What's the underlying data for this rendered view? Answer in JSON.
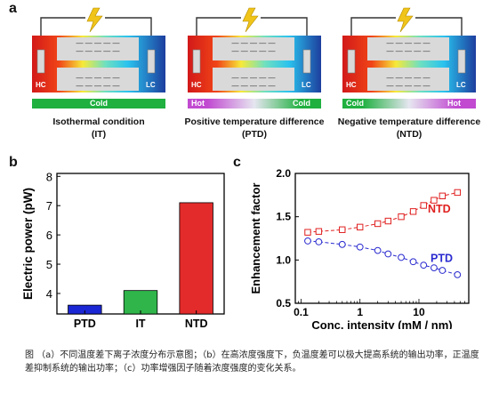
{
  "panels": {
    "a": {
      "letter": "a",
      "devices": [
        {
          "hot_label": "HC",
          "cold_label": "LC",
          "strip": [
            {
              "text": "Cold",
              "color": "#1fb040",
              "align": "center"
            }
          ],
          "condition": [
            "Isothermal condition",
            "(IT)"
          ]
        },
        {
          "hot_label": "HC",
          "cold_label": "LC",
          "strip": [
            {
              "text": "Hot",
              "color": "#c14ad1",
              "align": "left"
            },
            {
              "text": "Cold",
              "color": "#1fb040",
              "align": "right"
            }
          ],
          "condition": [
            "Positive temperature difference",
            "(PTD)"
          ]
        },
        {
          "hot_label": "HC",
          "cold_label": "LC",
          "strip": [
            {
              "text": "Cold",
              "color": "#1fb040",
              "align": "left"
            },
            {
              "text": "Hot",
              "color": "#c14ad1",
              "align": "right"
            }
          ],
          "condition": [
            "Negative temperature difference",
            "(NTD)"
          ]
        }
      ],
      "charge_sign": "— — — — —",
      "colors": {
        "hot": "#d21919",
        "cold": "#1d3e9e",
        "electrode": "#d9d9d9",
        "wire": "#333333",
        "bolt": "#f0c419"
      }
    },
    "b": {
      "letter": "b"
    },
    "c": {
      "letter": "c"
    }
  },
  "chart_data": [
    {
      "type": "bar",
      "panel": "b",
      "categories": [
        "PTD",
        "IT",
        "NTD"
      ],
      "values": [
        3.6,
        4.1,
        7.1
      ],
      "colors": [
        "#1b26d4",
        "#2fb54a",
        "#e32b2b"
      ],
      "ylabel": "Electric power (pW)",
      "yticks": [
        4,
        5,
        6,
        7,
        8
      ],
      "ylim": [
        3.3,
        8.1
      ]
    },
    {
      "type": "line",
      "panel": "c",
      "xscale": "log",
      "xlabel": "Conc. intensity (mM / nm)",
      "ylabel": "Enhancement factor",
      "xticks": [
        {
          "value": 0.1,
          "label": "0.1"
        },
        {
          "value": 1,
          "label": "1"
        },
        {
          "value": 10,
          "label": "10"
        }
      ],
      "yticks": [
        0.5,
        1.0,
        1.5,
        2.0
      ],
      "ytick_labels": [
        "0.5",
        "1.0",
        "1.5",
        "2.0"
      ],
      "xlim": [
        0.08,
        70
      ],
      "ylim": [
        0.5,
        2.0
      ],
      "series": [
        {
          "name": "NTD",
          "marker": "square",
          "color": "#e02020",
          "x": [
            0.13,
            0.2,
            0.5,
            1,
            2,
            3,
            5,
            8,
            12,
            18,
            25,
            45
          ],
          "y": [
            1.32,
            1.33,
            1.35,
            1.38,
            1.42,
            1.45,
            1.5,
            1.56,
            1.63,
            1.69,
            1.74,
            1.78
          ]
        },
        {
          "name": "PTD",
          "marker": "circle",
          "color": "#2a2ad0",
          "x": [
            0.13,
            0.2,
            0.5,
            1,
            2,
            3,
            5,
            8,
            12,
            18,
            25,
            45
          ],
          "y": [
            1.22,
            1.21,
            1.18,
            1.15,
            1.11,
            1.07,
            1.03,
            0.98,
            0.94,
            0.91,
            0.88,
            0.83
          ]
        }
      ]
    }
  ],
  "caption": "图 （a）不同温度差下离子浓度分布示意图；（b）在高浓度强度下，负温度差可以极大提高系统的输出功率，正温度差抑制系统的输出功率；（c）功率增强因子随着浓度强度的变化关系。"
}
